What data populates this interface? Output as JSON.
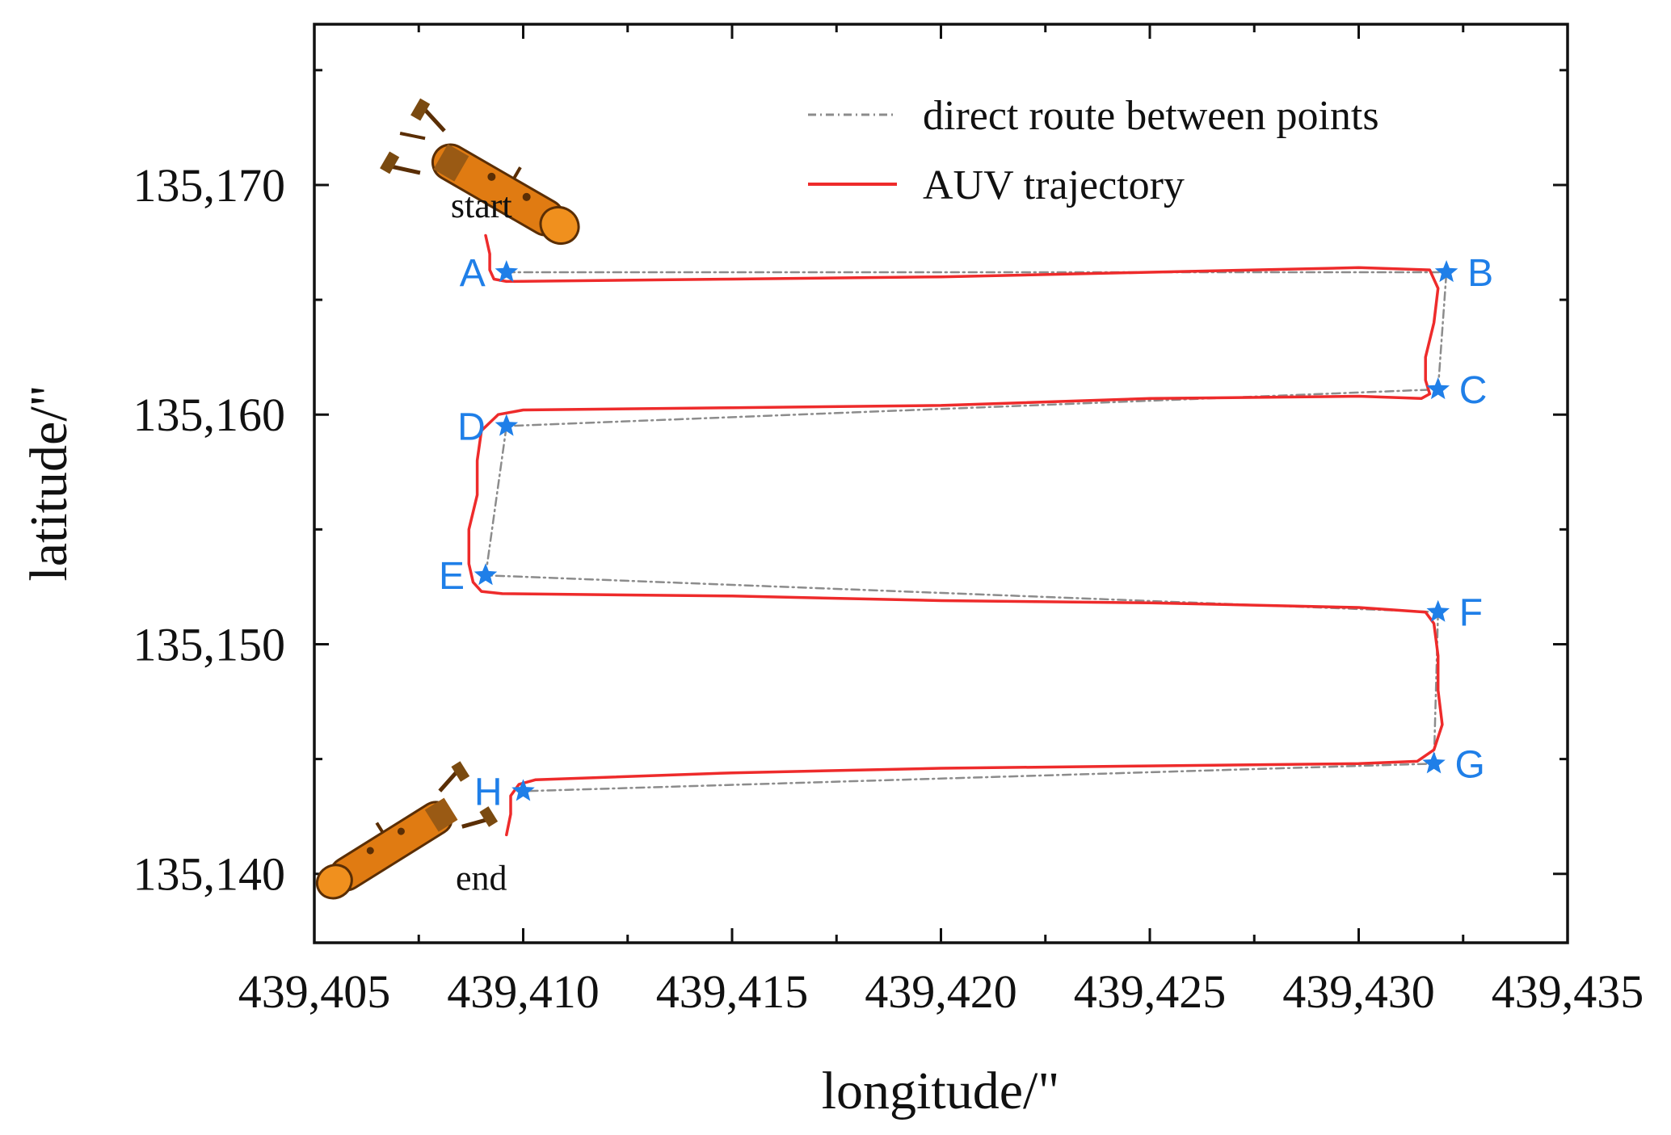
{
  "chart_data": {
    "type": "line",
    "title": "",
    "xlabel": "longitude/\"",
    "ylabel": "latitude/\"",
    "xlim": [
      439405,
      439435
    ],
    "ylim": [
      135137,
      135177
    ],
    "x_ticks": [
      439405,
      439410,
      439415,
      439420,
      439425,
      439430,
      439435
    ],
    "x_tick_labels": [
      "439,405",
      "439,410",
      "439,415",
      "439,420",
      "439,425",
      "439,430",
      "439,435"
    ],
    "y_ticks": [
      135140,
      135150,
      135160,
      135170
    ],
    "y_tick_labels": [
      "135,140",
      "135,150",
      "135,160",
      "135,170"
    ],
    "grid": false,
    "legend_position": "top-right",
    "colors": {
      "waypoint": "#1f7fe8",
      "direct_route": "#8c8c8c",
      "trajectory": "#ee2b2b"
    },
    "waypoints": [
      {
        "label": "A",
        "x": 439409.6,
        "y": 135166.2
      },
      {
        "label": "B",
        "x": 439432.1,
        "y": 135166.2
      },
      {
        "label": "C",
        "x": 439431.9,
        "y": 135161.1
      },
      {
        "label": "D",
        "x": 439409.6,
        "y": 135159.5
      },
      {
        "label": "E",
        "x": 439409.1,
        "y": 135153.0
      },
      {
        "label": "F",
        "x": 439431.9,
        "y": 135151.4
      },
      {
        "label": "G",
        "x": 439431.8,
        "y": 135144.8
      },
      {
        "label": "H",
        "x": 439410.0,
        "y": 135143.6
      }
    ],
    "series": [
      {
        "name": "direct route between points",
        "style": "dash-dot",
        "color": "#8c8c8c",
        "x": [
          439409.6,
          439432.1,
          439431.9,
          439409.6,
          439409.1,
          439431.9,
          439431.8,
          439410.0
        ],
        "y": [
          135166.2,
          135166.2,
          135161.1,
          135159.5,
          135153.0,
          135151.4,
          135144.8,
          135143.6
        ]
      },
      {
        "name": "AUV trajectory",
        "style": "solid",
        "color": "#ee2b2b",
        "x": [
          439409.1,
          439409.2,
          439409.2,
          439409.3,
          439409.6,
          439415.0,
          439420.0,
          439425.0,
          439430.0,
          439431.7,
          439431.9,
          439431.8,
          439431.6,
          439431.6,
          439431.7,
          439431.5,
          439430.0,
          439425.0,
          439420.0,
          439415.0,
          439410.0,
          439409.4,
          439409.0,
          439408.9,
          439408.9,
          439408.7,
          439408.7,
          439408.8,
          439409.0,
          439409.5,
          439415.0,
          439420.0,
          439425.0,
          439430.0,
          439431.6,
          439431.8,
          439431.9,
          439431.9,
          439432.0,
          439431.8,
          439431.4,
          439430.0,
          439425.0,
          439420.0,
          439415.0,
          439410.3,
          439409.9,
          439409.7,
          439409.7,
          439409.6
        ],
        "y": [
          135167.8,
          135167.0,
          135166.3,
          135165.9,
          135165.8,
          135165.9,
          135166.0,
          135166.2,
          135166.4,
          135166.3,
          135165.5,
          135164.0,
          135162.5,
          135161.5,
          135160.9,
          135160.7,
          135160.8,
          135160.7,
          135160.4,
          135160.3,
          135160.2,
          135160.0,
          135159.3,
          135158.0,
          135156.5,
          135155.0,
          135153.5,
          135152.7,
          135152.3,
          135152.2,
          135152.1,
          135151.9,
          135151.8,
          135151.6,
          135151.4,
          135150.9,
          135149.5,
          135148.0,
          135146.5,
          135145.4,
          135144.9,
          135144.8,
          135144.7,
          135144.6,
          135144.4,
          135144.1,
          135143.9,
          135143.4,
          135142.6,
          135141.7
        ]
      }
    ],
    "annotations": [
      {
        "text": "start",
        "x": 439409.0,
        "y": 135168.6
      },
      {
        "text": "end",
        "x": 439409.0,
        "y": 135139.3
      }
    ]
  }
}
